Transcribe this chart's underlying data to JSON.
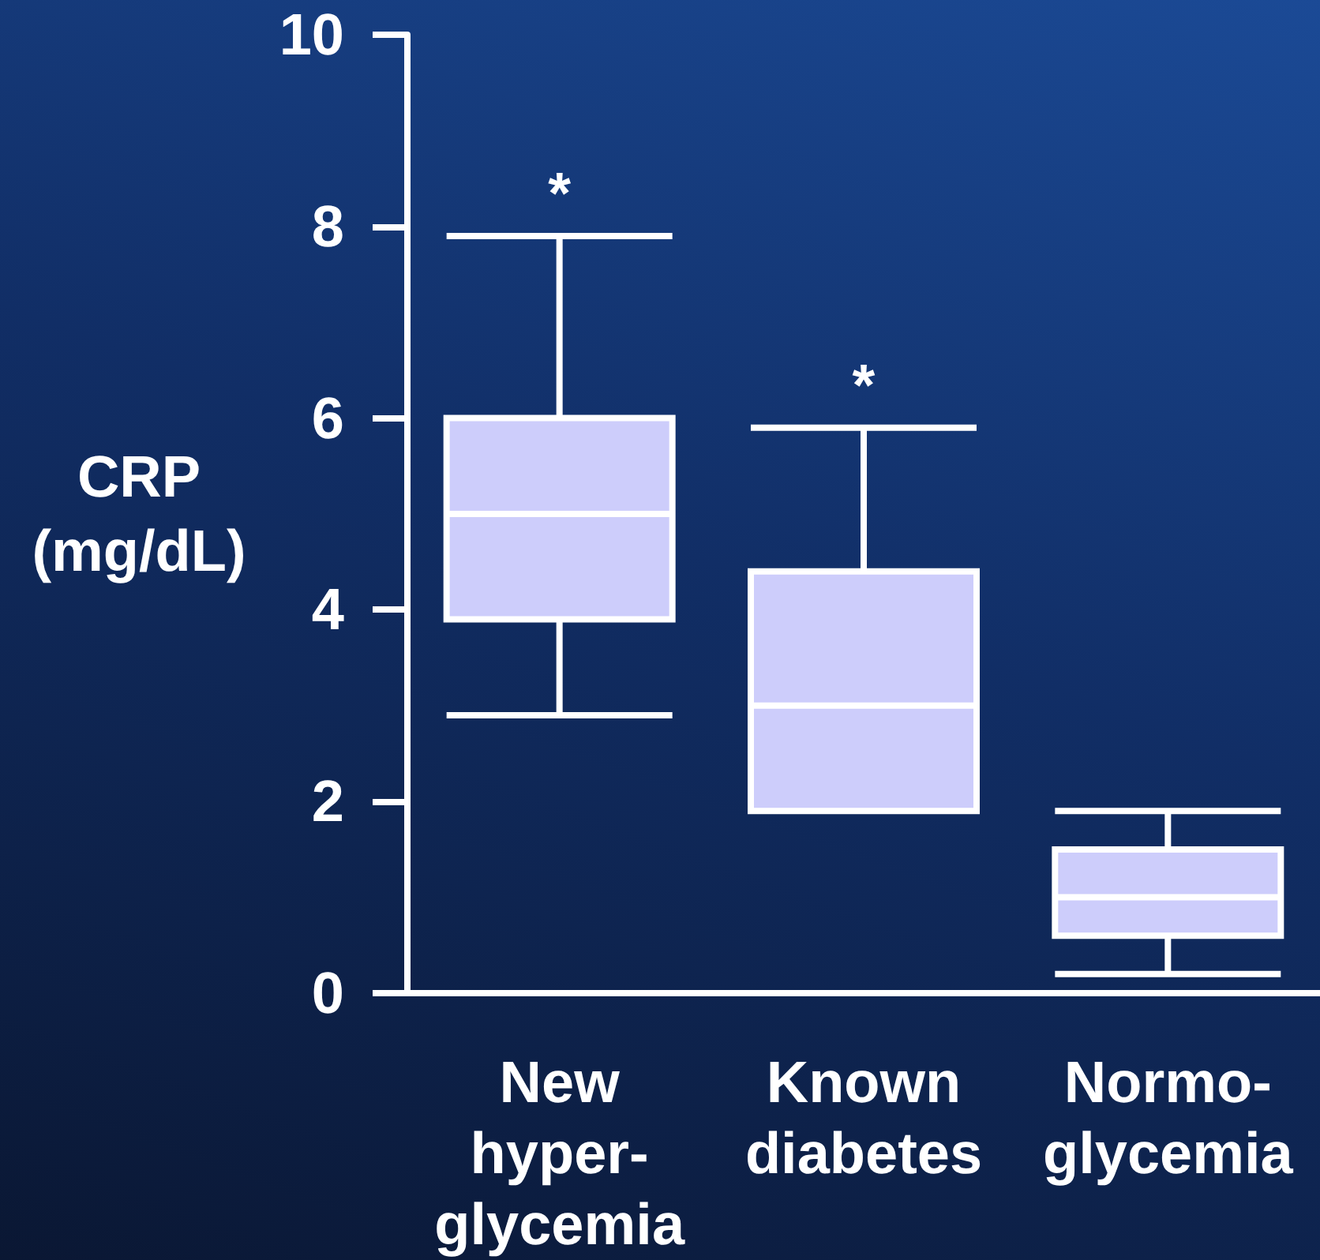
{
  "chart_data": {
    "type": "box",
    "ylabel": "CRP\n(mg/dL)",
    "categories": [
      "New\nhyper-\nglycemia",
      "Known\ndiabetes",
      "Normo-\nglycemia"
    ],
    "series": [
      {
        "color": "#cdcdfb",
        "boxes": [
          {
            "low": 2.9,
            "q1": 3.9,
            "median": 5.0,
            "q3": 6.0,
            "high": 7.9
          },
          {
            "low": 1.9,
            "q1": 1.9,
            "median": 3.0,
            "q3": 4.4,
            "high": 5.9
          },
          {
            "low": 0.2,
            "q1": 0.6,
            "median": 1.0,
            "q3": 1.5,
            "high": 1.9
          }
        ]
      }
    ],
    "ylim": [
      0,
      10
    ],
    "yticks": [
      0,
      2,
      4,
      6,
      8,
      10
    ],
    "grid": false,
    "annotations": [
      {
        "text": "*",
        "x": "New\nhyper-\nglycemia",
        "y": 7.9
      },
      {
        "text": "*",
        "x": "Known\ndiabetes",
        "y": 5.9
      }
    ]
  }
}
